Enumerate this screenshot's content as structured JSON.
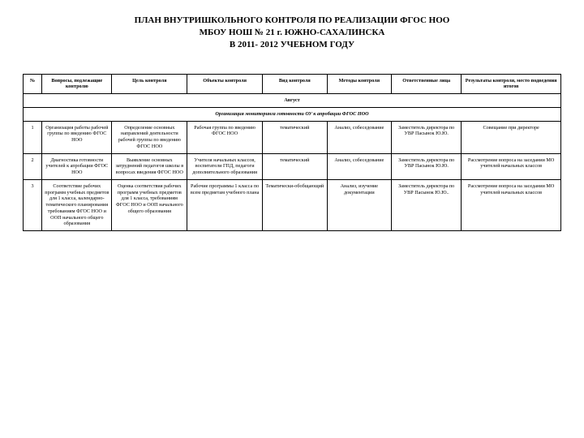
{
  "title_line1": "ПЛАН ВНУТРИШКОЛЬНОГО КОНТРОЛЯ ПО РЕАЛИЗАЦИИ ФГОС НОО",
  "title_line2": "МБОУ НОШ № 21 г. ЮЖНО-САХАЛИНСКА",
  "title_line3": "В 2011- 2012 УЧЕБНОМ ГОДУ",
  "headers": {
    "num": "№",
    "questions": "Вопросы, подлежащие контролю",
    "goal": "Цель контроля",
    "objects": "Объекты контроля",
    "type": "Вид контроля",
    "methods": "Методы контроля",
    "responsible": "Ответственные лица",
    "results": "Результаты контроля, место подведения итогов"
  },
  "section": "Август",
  "subheader": "Организация мониторинга готовности ОУ к апробации ФГОС НОО",
  "rows": [
    {
      "num": "1",
      "questions": "Организация работы рабочей группы по введению ФГОС НОО",
      "goal": "Определение основных направлений деятельности рабочей группы по введению ФГОС НОО",
      "objects": "Рабочая группа по введению ФГОС НОО",
      "type": "тематический",
      "methods": "Анализ, собеседование",
      "responsible": "Заместитель директора по УВР Пасынок Ю.Ю.",
      "results": "Совещание при директоре"
    },
    {
      "num": "2",
      "questions": "Диагностика готовности учителей к апробации ФГОС НОО",
      "goal": "Выявление основных затруднений педагогов школы в вопросах введения ФГОС НОО",
      "objects": "Учителя начальных классов, воспитатели ГПД, педагоги дополнительного образования",
      "type": "тематический",
      "methods": "Анализ, собеседование",
      "responsible": "Заместитель директора по УВР Пасынок Ю.Ю.",
      "results": "Рассмотрение вопроса на заседании МО учителей начальных классов"
    },
    {
      "num": "3",
      "questions": "Соответствие рабочих программ учебных предметов для 1 класса, календарно-тематического планирования требованиям ФГОС НОО и ООП начального общего образования",
      "goal": "Оценка соответствия рабочих программ учебных предметов для 1 класса, требованиям ФГОС НОО и ООП начального общего образования",
      "objects": "Рабочие программы 1 класса по всем предметам учебного плана",
      "type": "Тематически-обобщающий",
      "methods": "Анализ, изучение документации",
      "responsible": "Заместитель директора по УВР Пасынок Ю.Ю..",
      "results": "Рассмотрение вопроса на заседании МО учителей начальных классов"
    }
  ]
}
